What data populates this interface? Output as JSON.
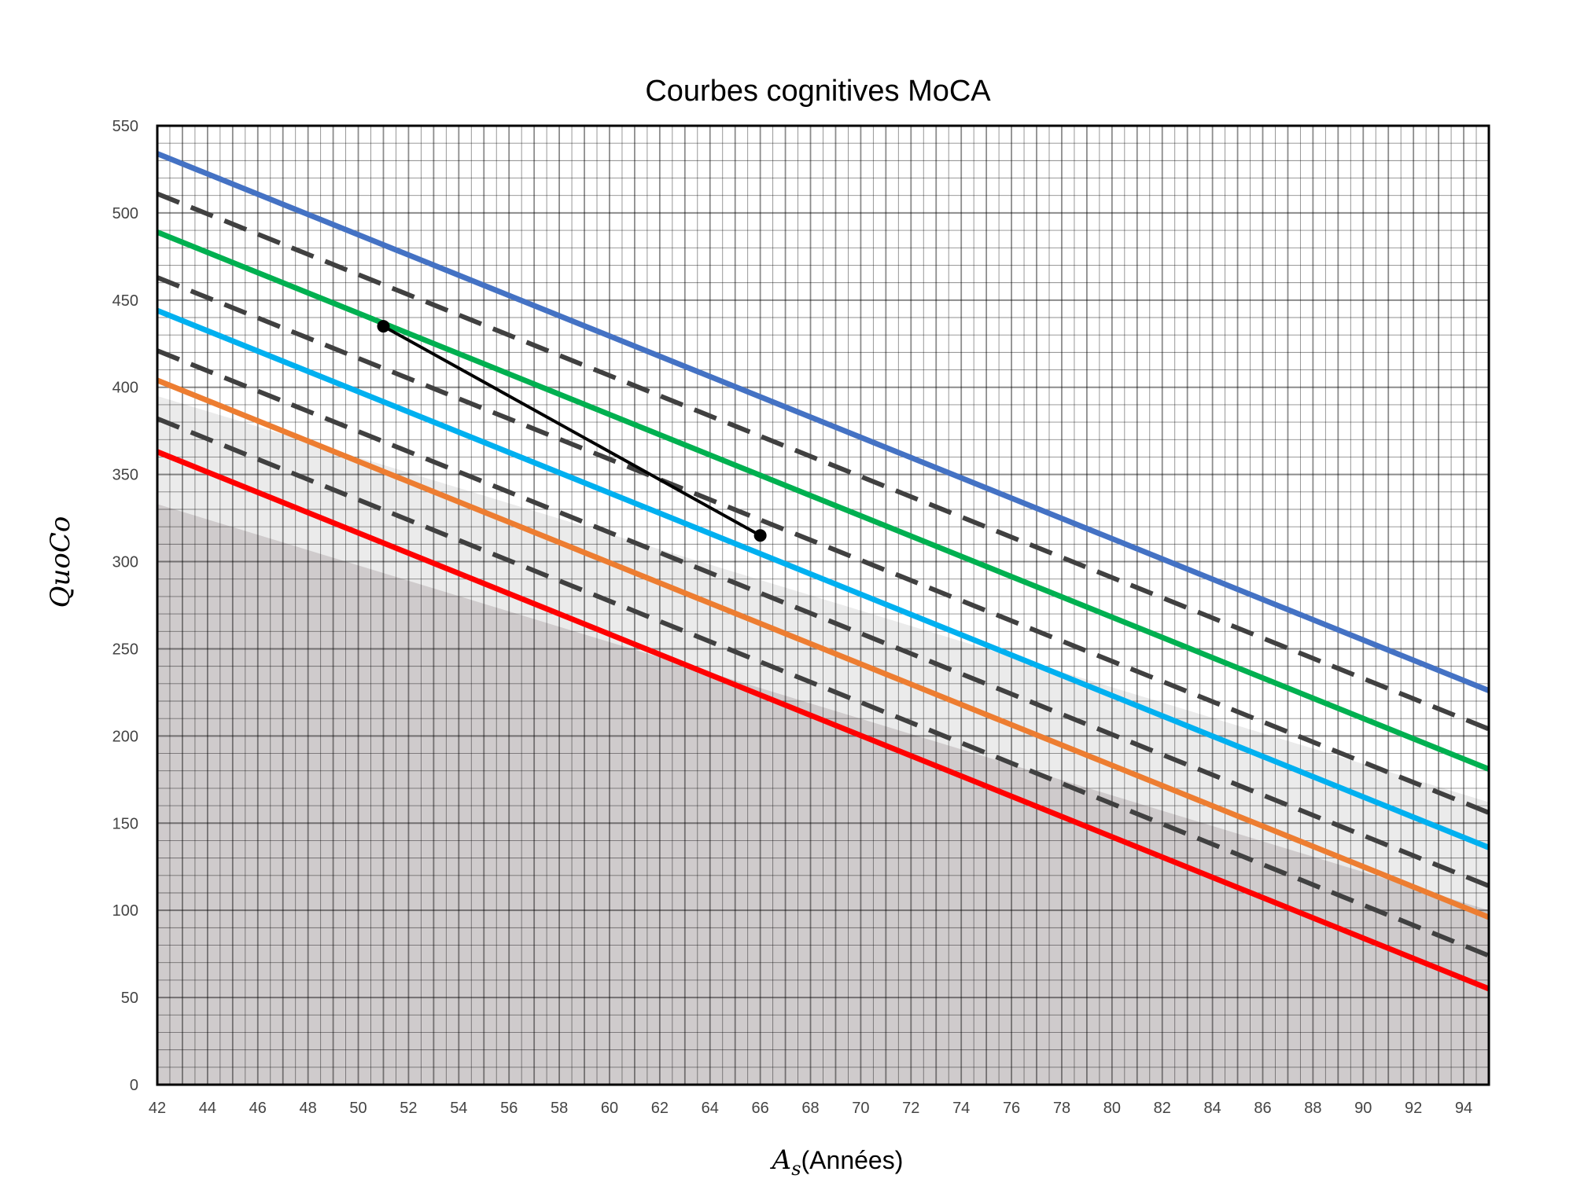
{
  "chart_data": {
    "type": "line",
    "title": "Courbes cognitives MoCA",
    "xlabel": "A_s(Années)",
    "xlabel_symbol": "A",
    "xlabel_subscript": "s",
    "xlabel_text": "(Années)",
    "ylabel": "QuoCo",
    "xlim": [
      42,
      95
    ],
    "ylim": [
      0,
      550
    ],
    "x_ticks": [
      "42",
      "44",
      "46",
      "48",
      "50",
      "52",
      "54",
      "56",
      "58",
      "60",
      "62",
      "64",
      "66",
      "68",
      "70",
      "72",
      "74",
      "76",
      "78",
      "80",
      "82",
      "84",
      "86",
      "88",
      "90",
      "92",
      "94"
    ],
    "y_ticks": [
      "0",
      "50",
      "100",
      "150",
      "200",
      "250",
      "300",
      "350",
      "400",
      "450",
      "500",
      "550"
    ],
    "grid": true,
    "grid_minor": true,
    "shaded_regions": [
      {
        "name": "light",
        "color": "#ebebeb",
        "y_at_xmin": 395,
        "y_at_xmax": 162
      },
      {
        "name": "dark",
        "color": "#cfcbcc",
        "y_at_xmin": 333,
        "y_at_xmax": 100
      }
    ],
    "series": [
      {
        "color": "#4472c4",
        "style": "solid",
        "x": [
          42,
          95
        ],
        "y": [
          534,
          226
        ]
      },
      {
        "color": "#404040",
        "style": "dashed",
        "x": [
          42,
          95
        ],
        "y": [
          511,
          204
        ]
      },
      {
        "color": "#00b050",
        "style": "solid",
        "x": [
          42,
          95
        ],
        "y": [
          489,
          181
        ]
      },
      {
        "color": "#404040",
        "style": "dashed",
        "x": [
          42,
          95
        ],
        "y": [
          463,
          156
        ]
      },
      {
        "color": "#00b0f0",
        "style": "solid",
        "x": [
          42,
          95
        ],
        "y": [
          444,
          136
        ]
      },
      {
        "color": "#404040",
        "style": "dashed",
        "x": [
          42,
          95
        ],
        "y": [
          421,
          114
        ]
      },
      {
        "color": "#ed7d31",
        "style": "solid",
        "x": [
          42,
          95
        ],
        "y": [
          404,
          96
        ]
      },
      {
        "color": "#404040",
        "style": "dashed",
        "x": [
          42,
          95
        ],
        "y": [
          382,
          74
        ]
      },
      {
        "color": "#ff0000",
        "style": "solid",
        "x": [
          42,
          95
        ],
        "y": [
          363,
          55
        ]
      },
      {
        "color": "#000000",
        "style": "solid-markers",
        "x": [
          51,
          66
        ],
        "y": [
          435,
          315
        ]
      }
    ]
  }
}
